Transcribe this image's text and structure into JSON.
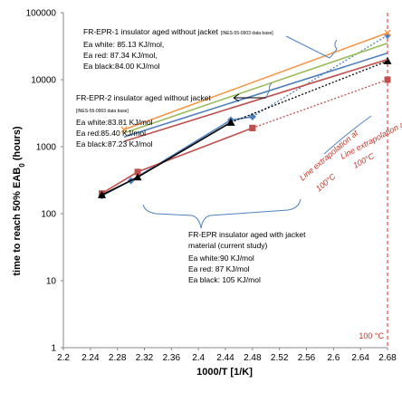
{
  "chart_data": {
    "type": "line",
    "xlabel": "1000/T [1/K]",
    "ylabel": "time to reach 50% EAB",
    "ylabel_sub": "0",
    "ylabel_unit": " (hours)",
    "xlim": [
      2.2,
      2.68
    ],
    "ylim": [
      1,
      100000
    ],
    "yscale": "log",
    "x_ticks": [
      2.2,
      2.24,
      2.28,
      2.32,
      2.36,
      2.4,
      2.44,
      2.48,
      2.52,
      2.56,
      2.6,
      2.64,
      2.68
    ],
    "x_tick_labels": [
      "2.2",
      "2.24",
      "2.28",
      "2.32",
      "2.36",
      "2.4",
      "2.44",
      "2.48",
      "2.52",
      "2.56",
      "2.6",
      "2.64",
      "2.68"
    ],
    "y_ticks": [
      1,
      10,
      100,
      1000,
      10000,
      100000
    ],
    "y_tick_labels": [
      "1",
      "10",
      "100",
      "1000",
      "10000",
      "100000"
    ],
    "grid": false,
    "reference_line": {
      "x": 2.68,
      "label": "100 °C",
      "color": "#e74c3c"
    },
    "series": [
      {
        "color": "#4f81bd",
        "marker": "diamond",
        "style": "solid",
        "points": [
          [
            2.257,
            185
          ],
          [
            2.3,
            310
          ],
          [
            2.448,
            2500
          ],
          [
            2.48,
            2800
          ]
        ]
      },
      {
        "color": "#4f81bd",
        "marker": "diamond",
        "style": "dotted",
        "points": [
          [
            2.48,
            2800
          ],
          [
            2.68,
            46000
          ]
        ]
      },
      {
        "color": "#c0504d",
        "marker": "square",
        "style": "solid",
        "points": [
          [
            2.257,
            200
          ],
          [
            2.31,
            420
          ],
          [
            2.48,
            1900
          ]
        ]
      },
      {
        "color": "#c0504d",
        "marker": "square",
        "style": "dotted",
        "points": [
          [
            2.48,
            1900
          ],
          [
            2.68,
            10000
          ]
        ]
      },
      {
        "color": "#000000",
        "marker": "triangle",
        "style": "solid",
        "points": [
          [
            2.257,
            190
          ],
          [
            2.31,
            350
          ],
          [
            2.448,
            2300
          ]
        ]
      },
      {
        "color": "#000000",
        "marker": "triangle",
        "style": "dotted",
        "points": [
          [
            2.448,
            2300
          ],
          [
            2.68,
            19000
          ]
        ]
      },
      {
        "color": "#f79646",
        "marker": "x",
        "style": "solid",
        "points": [
          [
            2.29,
            1800
          ],
          [
            2.68,
            50000
          ]
        ]
      },
      {
        "color": "#9bbb59",
        "marker": "none",
        "style": "solid",
        "points": [
          [
            2.29,
            1600
          ],
          [
            2.68,
            35000
          ]
        ]
      },
      {
        "color": "#4f81bd",
        "marker": "none",
        "style": "solid",
        "points": [
          [
            2.29,
            1400
          ],
          [
            2.68,
            25000
          ]
        ]
      },
      {
        "color": "#c0504d",
        "marker": "none",
        "style": "solid",
        "points": [
          [
            2.29,
            1200
          ],
          [
            2.68,
            20000
          ]
        ]
      }
    ],
    "annotations": {
      "note1": {
        "title": "FR-EPR-1 insulator aged without jacket",
        "title_ref": "[INES-55-0903 data base]",
        "lines": [
          "Ea white: 85.13 KJ/mol,",
          "Ea red: 87.34 KJ/mol,",
          "Ea black:84.00 KJ/mol"
        ]
      },
      "note2": {
        "title": "FR-EPR-2 insulator aged without jacket",
        "title_ref": "[INES-55-0903 data base]",
        "lines": [
          "Ea white:83.81 KJ/mol",
          "Ea red:85.40 KJ/mol",
          "Ea black:87.23 KJ/mol"
        ]
      },
      "note3": {
        "lines": [
          "FR-EPR insulator aged with jacket",
          "material (current study)",
          "Ea white:90 KJ/mol",
          "Ea red: 87 KJ/mol",
          "Ea black: 105 KJ/mol"
        ]
      },
      "extrapolation_label_1": "Line extrapolation at",
      "extrapolation_label_2": "Line extrapolation at",
      "extrapolation_temp": "100°C"
    }
  }
}
